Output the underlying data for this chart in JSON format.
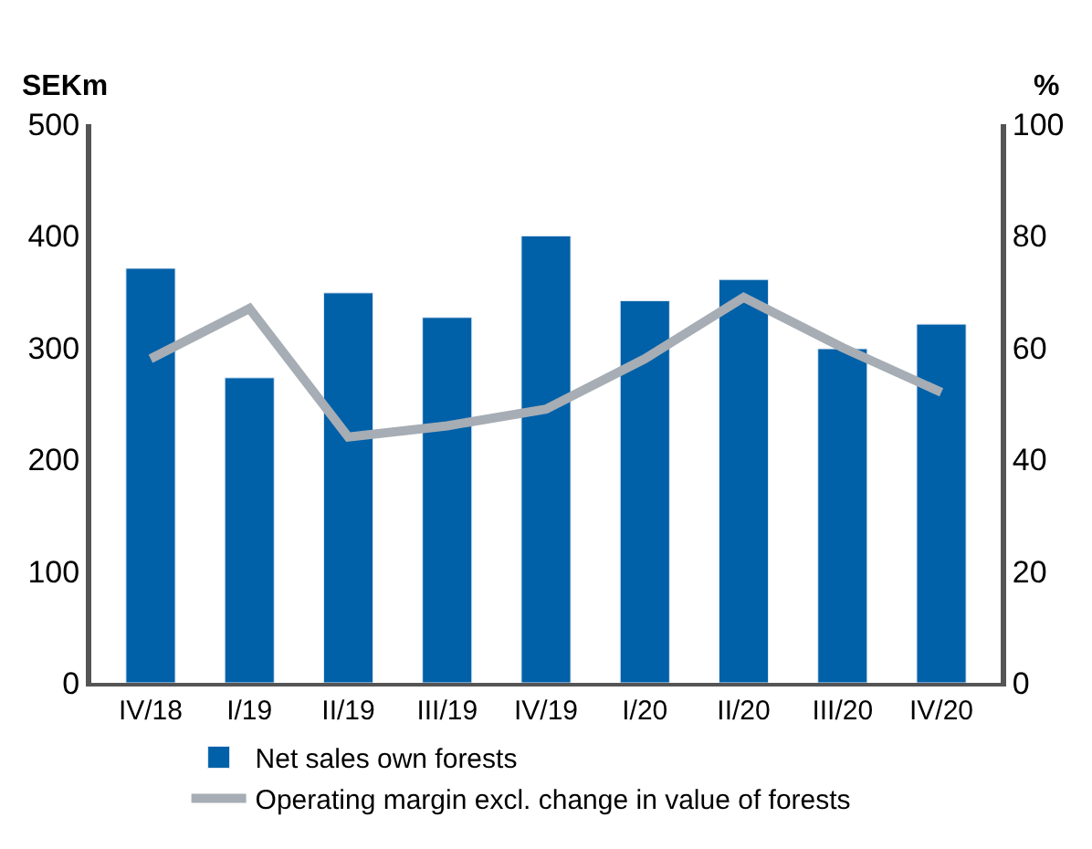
{
  "chart_data": {
    "type": "bar",
    "ylabel": "SEKm",
    "y2label": "%",
    "categories": [
      "IV/18",
      "I/19",
      "II/19",
      "III/19",
      "IV/19",
      "I/20",
      "II/20",
      "III/20",
      "IV/20"
    ],
    "series": [
      {
        "name": "Net sales own forests",
        "color": "#0060a8",
        "values": [
          371,
          273,
          349,
          327,
          400,
          342,
          361,
          299,
          321
        ]
      },
      {
        "name": "Operating margin excl. change in value of forests",
        "color": "#a6adb4",
        "type": "line",
        "axis": "y2",
        "values": [
          58,
          67,
          44,
          46,
          49,
          58,
          69,
          60,
          52
        ]
      }
    ],
    "ylim": [
      0,
      500
    ],
    "yticks": [
      0,
      100,
      200,
      300,
      400,
      500
    ],
    "y2lim": [
      0,
      100
    ],
    "y2ticks": [
      0,
      20,
      40,
      60,
      80,
      100
    ],
    "legend": "bottom",
    "marker": "none",
    "line_style": "solid"
  }
}
